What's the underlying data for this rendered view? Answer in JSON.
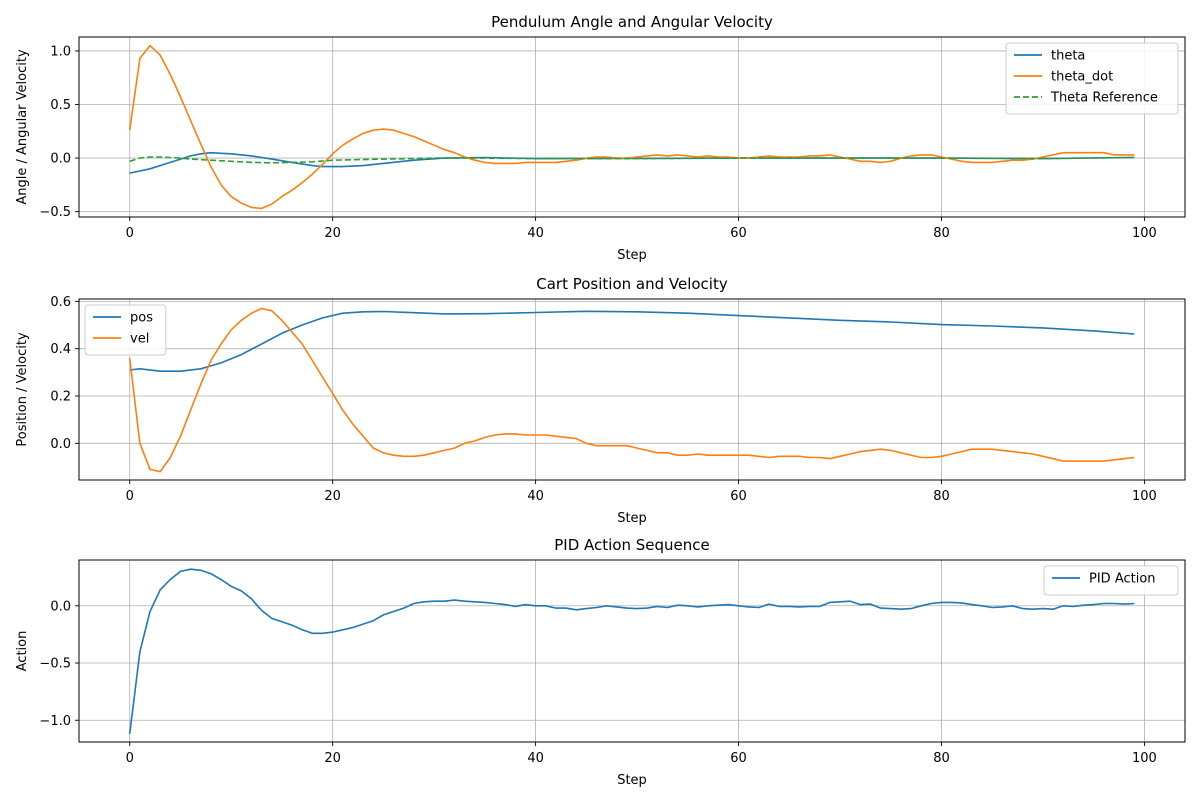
{
  "chart_data": [
    {
      "type": "line",
      "title": "Pendulum Angle and Angular Velocity",
      "xlabel": "Step",
      "ylabel": "Angle / Angular Velocity",
      "xlim": [
        -5,
        104
      ],
      "ylim": [
        -0.55,
        1.13
      ],
      "xticks": [
        0,
        20,
        40,
        60,
        80,
        100
      ],
      "yticks": [
        -0.5,
        0.0,
        0.5,
        1.0
      ],
      "ytick_labels": [
        "−0.5",
        "0.0",
        "0.5",
        "1.0"
      ],
      "grid": true,
      "legend_position": "top-right",
      "series": [
        {
          "name": "theta",
          "color": "#1f77b4",
          "dash": false,
          "x": [
            0,
            2,
            4,
            5,
            6,
            7,
            8,
            9,
            10,
            12,
            14,
            16,
            18,
            19,
            21,
            23,
            25,
            28,
            31,
            35,
            40,
            50,
            60,
            70,
            80,
            90,
            99
          ],
          "y": [
            -0.14,
            -0.1,
            -0.04,
            -0.01,
            0.02,
            0.04,
            0.05,
            0.045,
            0.04,
            0.02,
            -0.01,
            -0.04,
            -0.07,
            -0.08,
            -0.08,
            -0.07,
            -0.05,
            -0.02,
            0.0,
            0.005,
            -0.005,
            -0.003,
            0.0,
            0.0,
            0.0,
            -0.005,
            0.005
          ]
        },
        {
          "name": "theta_dot",
          "color": "#ff7f0e",
          "dash": false,
          "x": [
            0,
            1,
            2,
            3,
            4,
            5,
            6,
            7,
            8,
            9,
            10,
            11,
            12,
            13,
            14,
            15,
            16,
            17,
            18,
            19,
            20,
            21,
            22,
            23,
            24,
            25,
            26,
            27,
            28,
            29,
            30,
            31,
            32,
            33,
            34,
            35,
            36,
            37,
            38,
            39,
            40,
            41,
            42,
            43,
            44,
            45,
            46,
            47,
            48,
            49,
            50,
            51,
            52,
            53,
            54,
            55,
            56,
            57,
            58,
            59,
            60,
            61,
            62,
            63,
            64,
            65,
            66,
            67,
            68,
            69,
            70,
            71,
            72,
            73,
            74,
            75,
            76,
            77,
            78,
            79,
            80,
            81,
            82,
            83,
            84,
            85,
            86,
            87,
            88,
            89,
            90,
            91,
            92,
            93,
            94,
            95,
            96,
            97,
            98,
            99
          ],
          "y": [
            0.26,
            0.93,
            1.05,
            0.96,
            0.78,
            0.57,
            0.35,
            0.13,
            -0.08,
            -0.25,
            -0.36,
            -0.42,
            -0.46,
            -0.47,
            -0.43,
            -0.36,
            -0.3,
            -0.23,
            -0.15,
            -0.06,
            0.04,
            0.12,
            0.18,
            0.23,
            0.26,
            0.27,
            0.26,
            0.23,
            0.2,
            0.16,
            0.12,
            0.08,
            0.05,
            0.01,
            -0.02,
            -0.04,
            -0.05,
            -0.05,
            -0.05,
            -0.04,
            -0.04,
            -0.04,
            -0.04,
            -0.03,
            -0.02,
            0.0,
            0.01,
            0.01,
            0.0,
            0.0,
            0.01,
            0.02,
            0.03,
            0.02,
            0.03,
            0.02,
            0.01,
            0.02,
            0.01,
            0.01,
            0.0,
            0.0,
            0.01,
            0.02,
            0.01,
            0.01,
            0.01,
            0.02,
            0.02,
            0.03,
            0.01,
            -0.01,
            -0.03,
            -0.03,
            -0.04,
            -0.03,
            0.0,
            0.02,
            0.03,
            0.03,
            0.01,
            -0.01,
            -0.03,
            -0.04,
            -0.04,
            -0.04,
            -0.03,
            -0.02,
            -0.02,
            -0.01,
            0.01,
            0.03,
            0.05,
            0.05,
            0.05,
            0.05,
            0.05,
            0.03,
            0.03,
            0.03
          ]
        },
        {
          "name": "Theta Reference",
          "color": "#2ca02c",
          "dash": true,
          "x": [
            0,
            1,
            2,
            3,
            4,
            5,
            6,
            8,
            10,
            12,
            14,
            16,
            18,
            20,
            25,
            30,
            35,
            40,
            50,
            60,
            70,
            80,
            90,
            99
          ],
          "y": [
            -0.03,
            0.0,
            0.01,
            0.01,
            0.005,
            0.0,
            -0.01,
            -0.02,
            -0.03,
            -0.04,
            -0.045,
            -0.04,
            -0.035,
            -0.02,
            -0.01,
            0.0,
            0.0,
            -0.005,
            -0.005,
            0.0,
            0.0,
            0.0,
            -0.005,
            0.005
          ]
        }
      ]
    },
    {
      "type": "line",
      "title": "Cart Position and Velocity",
      "xlabel": "Step",
      "ylabel": "Position / Velocity",
      "xlim": [
        -5,
        104
      ],
      "ylim": [
        -0.155,
        0.61
      ],
      "xticks": [
        0,
        20,
        40,
        60,
        80,
        100
      ],
      "yticks": [
        0.0,
        0.2,
        0.4,
        0.6
      ],
      "ytick_labels": [
        "0.0",
        "0.2",
        "0.4",
        "0.6"
      ],
      "grid": true,
      "legend_position": "top-left",
      "series": [
        {
          "name": "pos",
          "color": "#1f77b4",
          "dash": false,
          "x": [
            0,
            1,
            3,
            5,
            7,
            9,
            11,
            13,
            15,
            17,
            19,
            21,
            23,
            25,
            28,
            31,
            35,
            40,
            45,
            50,
            55,
            60,
            65,
            70,
            75,
            80,
            85,
            90,
            95,
            99
          ],
          "y": [
            0.31,
            0.315,
            0.305,
            0.305,
            0.315,
            0.34,
            0.375,
            0.42,
            0.465,
            0.5,
            0.53,
            0.55,
            0.556,
            0.557,
            0.552,
            0.547,
            0.548,
            0.553,
            0.558,
            0.556,
            0.55,
            0.54,
            0.53,
            0.52,
            0.513,
            0.502,
            0.496,
            0.488,
            0.475,
            0.462
          ]
        },
        {
          "name": "vel",
          "color": "#ff7f0e",
          "dash": false,
          "x": [
            0,
            1,
            2,
            3,
            4,
            5,
            6,
            7,
            8,
            9,
            10,
            11,
            12,
            13,
            14,
            15,
            16,
            17,
            18,
            19,
            20,
            21,
            22,
            23,
            24,
            25,
            26,
            27,
            28,
            29,
            30,
            31,
            32,
            33,
            34,
            35,
            36,
            37,
            38,
            39,
            40,
            41,
            42,
            43,
            44,
            45,
            46,
            47,
            48,
            49,
            50,
            51,
            52,
            53,
            54,
            55,
            56,
            57,
            58,
            59,
            60,
            61,
            62,
            63,
            64,
            65,
            66,
            67,
            68,
            69,
            70,
            71,
            72,
            73,
            74,
            75,
            76,
            77,
            78,
            79,
            80,
            81,
            82,
            83,
            84,
            85,
            86,
            87,
            88,
            89,
            90,
            91,
            92,
            93,
            94,
            95,
            96,
            97,
            98,
            99
          ],
          "y": [
            0.36,
            0.0,
            -0.11,
            -0.12,
            -0.06,
            0.03,
            0.14,
            0.25,
            0.35,
            0.42,
            0.48,
            0.52,
            0.55,
            0.57,
            0.56,
            0.52,
            0.47,
            0.42,
            0.35,
            0.28,
            0.21,
            0.14,
            0.08,
            0.03,
            -0.02,
            -0.04,
            -0.05,
            -0.055,
            -0.055,
            -0.05,
            -0.04,
            -0.03,
            -0.02,
            0.0,
            0.01,
            0.025,
            0.035,
            0.04,
            0.04,
            0.035,
            0.035,
            0.035,
            0.03,
            0.025,
            0.02,
            0.0,
            -0.01,
            -0.01,
            -0.01,
            -0.01,
            -0.02,
            -0.03,
            -0.04,
            -0.04,
            -0.05,
            -0.05,
            -0.045,
            -0.05,
            -0.05,
            -0.05,
            -0.05,
            -0.05,
            -0.055,
            -0.06,
            -0.055,
            -0.055,
            -0.055,
            -0.06,
            -0.06,
            -0.065,
            -0.055,
            -0.045,
            -0.035,
            -0.03,
            -0.025,
            -0.03,
            -0.04,
            -0.05,
            -0.06,
            -0.06,
            -0.055,
            -0.045,
            -0.035,
            -0.025,
            -0.025,
            -0.025,
            -0.03,
            -0.035,
            -0.04,
            -0.045,
            -0.055,
            -0.065,
            -0.075,
            -0.075,
            -0.075,
            -0.075,
            -0.075,
            -0.07,
            -0.065,
            -0.06
          ]
        }
      ]
    },
    {
      "type": "line",
      "title": "PID Action Sequence",
      "xlabel": "Step",
      "ylabel": "Action",
      "xlim": [
        -5,
        104
      ],
      "ylim": [
        -1.19,
        0.4
      ],
      "xticks": [
        0,
        20,
        40,
        60,
        80,
        100
      ],
      "yticks": [
        -1.0,
        -0.5,
        0.0
      ],
      "ytick_labels": [
        "−1.0",
        "−0.5",
        "0.0"
      ],
      "grid": true,
      "legend_position": "top-right",
      "series": [
        {
          "name": "PID Action",
          "color": "#1f77b4",
          "dash": false,
          "x": [
            0,
            1,
            2,
            3,
            4,
            5,
            6,
            7,
            8,
            9,
            10,
            11,
            12,
            13,
            14,
            15,
            16,
            17,
            18,
            19,
            20,
            21,
            22,
            23,
            24,
            25,
            26,
            27,
            28,
            29,
            30,
            31,
            32,
            33,
            34,
            35,
            36,
            37,
            38,
            39,
            40,
            41,
            42,
            43,
            44,
            45,
            46,
            47,
            48,
            49,
            50,
            51,
            52,
            53,
            54,
            55,
            56,
            57,
            58,
            59,
            60,
            61,
            62,
            63,
            64,
            65,
            66,
            67,
            68,
            69,
            70,
            71,
            72,
            73,
            74,
            75,
            76,
            77,
            78,
            79,
            80,
            81,
            82,
            83,
            84,
            85,
            86,
            87,
            88,
            89,
            90,
            91,
            92,
            93,
            94,
            95,
            96,
            97,
            98,
            99
          ],
          "y": [
            -1.12,
            -0.4,
            -0.05,
            0.14,
            0.23,
            0.3,
            0.32,
            0.31,
            0.28,
            0.23,
            0.17,
            0.13,
            0.06,
            -0.04,
            -0.11,
            -0.14,
            -0.17,
            -0.21,
            -0.24,
            -0.24,
            -0.23,
            -0.21,
            -0.19,
            -0.16,
            -0.13,
            -0.08,
            -0.05,
            -0.02,
            0.02,
            0.035,
            0.04,
            0.04,
            0.05,
            0.04,
            0.035,
            0.03,
            0.02,
            0.01,
            -0.005,
            0.01,
            0.0,
            0.0,
            -0.02,
            -0.02,
            -0.035,
            -0.025,
            -0.015,
            0.0,
            -0.01,
            -0.02,
            -0.025,
            -0.02,
            -0.005,
            -0.015,
            0.005,
            0.0,
            -0.01,
            0.0,
            0.005,
            0.01,
            0.0,
            -0.01,
            -0.015,
            0.015,
            -0.005,
            -0.005,
            -0.01,
            -0.005,
            -0.005,
            0.03,
            0.035,
            0.04,
            0.01,
            0.015,
            -0.02,
            -0.025,
            -0.03,
            -0.025,
            0.0,
            0.02,
            0.03,
            0.03,
            0.025,
            0.01,
            0.0,
            -0.015,
            -0.01,
            0.0,
            -0.025,
            -0.03,
            -0.025,
            -0.03,
            0.0,
            -0.005,
            0.005,
            0.01,
            0.02,
            0.02,
            0.015,
            0.02
          ]
        }
      ]
    }
  ]
}
